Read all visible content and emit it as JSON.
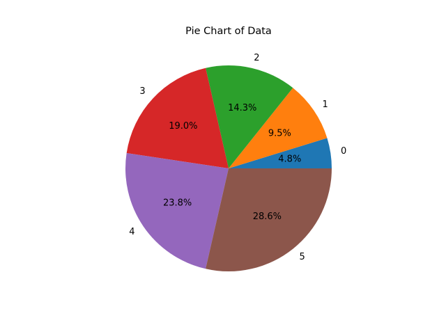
{
  "chart_data": {
    "type": "pie",
    "title": "Pie Chart of Data",
    "labels": [
      "0",
      "1",
      "2",
      "3",
      "4",
      "5"
    ],
    "values": [
      1,
      2,
      3,
      4,
      5,
      6
    ],
    "percent_labels": [
      "4.8%",
      "9.5%",
      "14.3%",
      "19.0%",
      "23.8%",
      "28.6%"
    ],
    "colors": [
      "#1f77b4",
      "#ff7f0e",
      "#2ca02c",
      "#d62728",
      "#9467bd",
      "#8c564b"
    ],
    "start_angle_deg": 0,
    "direction": "counterclockwise",
    "legend": "none"
  }
}
